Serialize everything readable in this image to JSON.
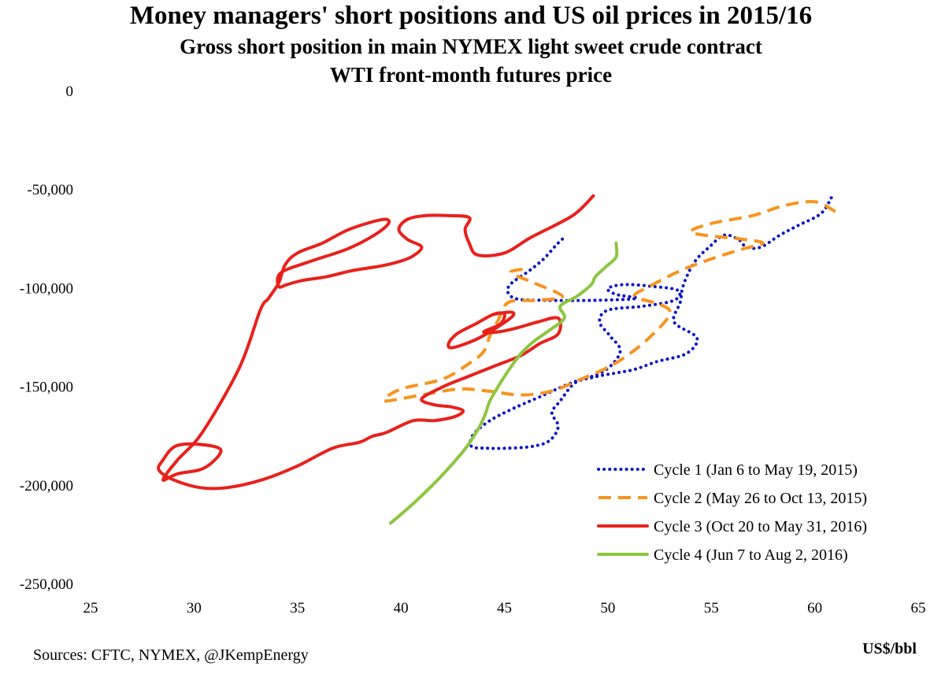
{
  "chart_data": {
    "type": "line",
    "title": "Money managers' short positions and US oil prices in 2015/16",
    "subtitle_lines": [
      "Gross short position in main NYMEX light sweet crude contract",
      "WTI front-month futures price"
    ],
    "xlabel": "US$/bbl",
    "source": "Sources: CFTC, NYMEX, @JKempEnergy",
    "xlim": [
      25,
      65
    ],
    "ylim": [
      -250000,
      0
    ],
    "x_ticks": [
      {
        "value": 25,
        "label": "25"
      },
      {
        "value": 30,
        "label": "30"
      },
      {
        "value": 35,
        "label": "35"
      },
      {
        "value": 40,
        "label": "40"
      },
      {
        "value": 45,
        "label": "45"
      },
      {
        "value": 50,
        "label": "50"
      },
      {
        "value": 55,
        "label": "55"
      },
      {
        "value": 60,
        "label": "60"
      },
      {
        "value": 65,
        "label": "65"
      }
    ],
    "y_ticks": [
      {
        "value": 0,
        "label": "0"
      },
      {
        "value": -50000,
        "label": "-50,000"
      },
      {
        "value": -100000,
        "label": "-100,000"
      },
      {
        "value": -150000,
        "label": "-150,000"
      },
      {
        "value": -200000,
        "label": "-200,000"
      },
      {
        "value": -250000,
        "label": "-250,000"
      }
    ],
    "grid": false,
    "legend_position": "bottom-right",
    "series": [
      {
        "name": "Cycle 1 (Jan 6 to May 19, 2015)",
        "color": "#0a14c8",
        "style": "dotted",
        "points": [
          [
            60.8,
            -54000
          ],
          [
            60.3,
            -62000
          ],
          [
            59.2,
            -68000
          ],
          [
            58.3,
            -73000
          ],
          [
            57.4,
            -79000
          ],
          [
            56.7,
            -79000
          ],
          [
            56.3,
            -75000
          ],
          [
            55.6,
            -73000
          ],
          [
            54.9,
            -79000
          ],
          [
            54.3,
            -85000
          ],
          [
            53.9,
            -92000
          ],
          [
            53.6,
            -100000
          ],
          [
            53.5,
            -107000
          ],
          [
            53.2,
            -117000
          ],
          [
            54.3,
            -125000
          ],
          [
            53.8,
            -133000
          ],
          [
            52.4,
            -137000
          ],
          [
            51.3,
            -141000
          ],
          [
            50.3,
            -143000
          ],
          [
            49.3,
            -145000
          ],
          [
            48.4,
            -148000
          ],
          [
            47.7,
            -157000
          ],
          [
            47.3,
            -163000
          ],
          [
            47.6,
            -170000
          ],
          [
            47.2,
            -177000
          ],
          [
            46.4,
            -180000
          ],
          [
            45.2,
            -181000
          ],
          [
            44.1,
            -181000
          ],
          [
            43.4,
            -180000
          ],
          [
            43.5,
            -174000
          ],
          [
            44.3,
            -167000
          ],
          [
            45.4,
            -161000
          ],
          [
            46.7,
            -155000
          ],
          [
            48.2,
            -148000
          ],
          [
            49.8,
            -142000
          ],
          [
            50.6,
            -132000
          ],
          [
            50.1,
            -124000
          ],
          [
            49.6,
            -117000
          ],
          [
            50.0,
            -111000
          ],
          [
            51.7,
            -109000
          ],
          [
            53.2,
            -106000
          ],
          [
            53.4,
            -101000
          ],
          [
            52.2,
            -99000
          ],
          [
            50.8,
            -98000
          ],
          [
            50.0,
            -100000
          ],
          [
            50.4,
            -103000
          ],
          [
            51.4,
            -105000
          ],
          [
            49.4,
            -106000
          ],
          [
            47.1,
            -106000
          ],
          [
            45.5,
            -105000
          ],
          [
            45.2,
            -99000
          ],
          [
            46.2,
            -91000
          ],
          [
            46.9,
            -85000
          ],
          [
            47.5,
            -78000
          ],
          [
            47.9,
            -74000
          ]
        ]
      },
      {
        "name": "Cycle 2 (May 26 to Oct 13, 2015)",
        "color": "#f7941d",
        "style": "dashed",
        "points": [
          [
            61.0,
            -61000
          ],
          [
            60.0,
            -56000
          ],
          [
            58.5,
            -58000
          ],
          [
            57.0,
            -63000
          ],
          [
            55.0,
            -67000
          ],
          [
            54.0,
            -71000
          ],
          [
            54.7,
            -73000
          ],
          [
            56.5,
            -75000
          ],
          [
            57.5,
            -77000
          ],
          [
            56.5,
            -80000
          ],
          [
            55.0,
            -85000
          ],
          [
            53.5,
            -91000
          ],
          [
            52.0,
            -99000
          ],
          [
            51.3,
            -104000
          ],
          [
            52.5,
            -108000
          ],
          [
            53.0,
            -113000
          ],
          [
            52.0,
            -125000
          ],
          [
            50.8,
            -135000
          ],
          [
            49.8,
            -141000
          ],
          [
            48.7,
            -146000
          ],
          [
            47.3,
            -152000
          ],
          [
            45.8,
            -154000
          ],
          [
            44.2,
            -152000
          ],
          [
            42.8,
            -151000
          ],
          [
            41.0,
            -154000
          ],
          [
            39.2,
            -157000
          ],
          [
            40.0,
            -151000
          ],
          [
            42.0,
            -146000
          ],
          [
            43.3,
            -138000
          ],
          [
            44.0,
            -132000
          ],
          [
            44.3,
            -124000
          ],
          [
            44.7,
            -116000
          ],
          [
            45.2,
            -107000
          ],
          [
            46.5,
            -106000
          ],
          [
            47.8,
            -104000
          ],
          [
            46.4,
            -97000
          ],
          [
            45.3,
            -92000
          ],
          [
            46.0,
            -90000
          ]
        ]
      },
      {
        "name": "Cycle 3 (Oct 20 to May 31, 2016)",
        "color": "#e8211b",
        "style": "solid",
        "points": [
          [
            49.3,
            -53000
          ],
          [
            48.3,
            -63000
          ],
          [
            46.3,
            -74000
          ],
          [
            45.0,
            -82000
          ],
          [
            43.7,
            -83000
          ],
          [
            43.3,
            -77000
          ],
          [
            43.1,
            -70000
          ],
          [
            43.3,
            -64000
          ],
          [
            42.2,
            -63000
          ],
          [
            41.2,
            -63000
          ],
          [
            40.3,
            -65000
          ],
          [
            39.9,
            -70000
          ],
          [
            40.3,
            -75000
          ],
          [
            41.0,
            -79000
          ],
          [
            40.5,
            -84000
          ],
          [
            39.7,
            -87000
          ],
          [
            38.8,
            -89000
          ],
          [
            37.6,
            -91000
          ],
          [
            36.4,
            -94000
          ],
          [
            35.2,
            -96000
          ],
          [
            34.5,
            -98000
          ],
          [
            34.1,
            -99000
          ],
          [
            34.2,
            -92000
          ],
          [
            35.7,
            -86000
          ],
          [
            37.4,
            -80000
          ],
          [
            38.7,
            -73000
          ],
          [
            39.4,
            -67000
          ],
          [
            39.1,
            -65000
          ],
          [
            37.5,
            -70000
          ],
          [
            36.2,
            -77000
          ],
          [
            35.0,
            -82000
          ],
          [
            34.4,
            -88000
          ],
          [
            34.1,
            -97000
          ],
          [
            33.6,
            -105000
          ],
          [
            33.2,
            -111000
          ],
          [
            32.2,
            -140000
          ],
          [
            30.4,
            -173000
          ],
          [
            29.2,
            -187000
          ],
          [
            28.5,
            -197000
          ],
          [
            29.2,
            -194000
          ],
          [
            30.5,
            -191000
          ],
          [
            31.3,
            -182000
          ],
          [
            30.2,
            -179000
          ],
          [
            29.1,
            -180000
          ],
          [
            28.5,
            -187000
          ],
          [
            28.3,
            -192000
          ],
          [
            29.0,
            -197000
          ],
          [
            30.3,
            -201000
          ],
          [
            31.6,
            -201000
          ],
          [
            33.3,
            -197000
          ],
          [
            35.0,
            -190000
          ],
          [
            36.7,
            -181000
          ],
          [
            38.0,
            -178000
          ],
          [
            38.6,
            -175000
          ],
          [
            39.3,
            -173000
          ],
          [
            40.6,
            -167000
          ],
          [
            41.6,
            -167000
          ],
          [
            42.6,
            -165000
          ],
          [
            43.0,
            -162000
          ],
          [
            42.4,
            -160000
          ],
          [
            41.6,
            -159000
          ],
          [
            41.0,
            -156000
          ],
          [
            42.0,
            -150000
          ],
          [
            43.4,
            -144000
          ],
          [
            44.6,
            -139000
          ],
          [
            45.8,
            -134000
          ],
          [
            46.7,
            -128000
          ],
          [
            47.6,
            -123000
          ],
          [
            47.6,
            -115000
          ],
          [
            46.6,
            -117000
          ],
          [
            45.6,
            -120000
          ],
          [
            44.7,
            -122000
          ],
          [
            44.0,
            -122000
          ],
          [
            44.8,
            -118000
          ],
          [
            45.0,
            -113000
          ],
          [
            44.5,
            -113000
          ],
          [
            43.6,
            -118000
          ],
          [
            42.7,
            -123000
          ],
          [
            42.3,
            -128000
          ],
          [
            42.5,
            -130000
          ],
          [
            43.6,
            -126000
          ],
          [
            44.6,
            -120000
          ],
          [
            45.4,
            -114000
          ],
          [
            45.3,
            -112000
          ],
          [
            44.5,
            -113000
          ]
        ]
      },
      {
        "name": "Cycle 4 (Jun 7 to Aug 2, 2016)",
        "color": "#8cc63f",
        "style": "solid",
        "points": [
          [
            39.5,
            -219000
          ],
          [
            40.5,
            -210000
          ],
          [
            41.5,
            -200000
          ],
          [
            42.4,
            -190000
          ],
          [
            43.2,
            -180000
          ],
          [
            43.8,
            -170000
          ],
          [
            44.1,
            -163000
          ],
          [
            44.3,
            -157000
          ],
          [
            44.8,
            -148000
          ],
          [
            45.3,
            -140000
          ],
          [
            45.8,
            -133000
          ],
          [
            46.4,
            -127000
          ],
          [
            47.2,
            -121000
          ],
          [
            47.9,
            -115000
          ],
          [
            47.7,
            -109000
          ],
          [
            48.5,
            -104000
          ],
          [
            49.2,
            -98000
          ],
          [
            49.4,
            -94000
          ],
          [
            49.9,
            -89000
          ],
          [
            50.4,
            -84000
          ],
          [
            50.4,
            -77000
          ]
        ]
      }
    ]
  }
}
